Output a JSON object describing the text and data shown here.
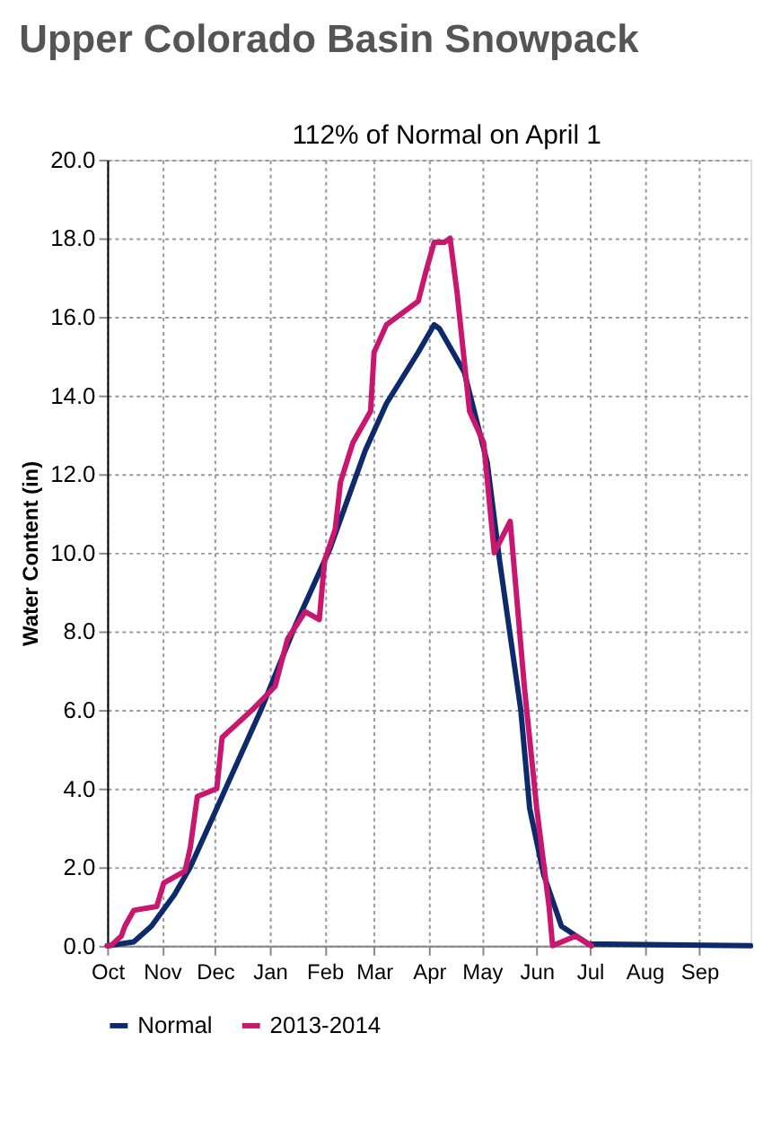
{
  "chart_data": {
    "type": "line",
    "title": "Upper Colorado Basin Snowpack",
    "ylabel": "Water Content (in)",
    "annotations": [
      "112% of Normal on April 1"
    ],
    "xlim": [
      "2013-10-01",
      "2014-09-30"
    ],
    "xticks": [
      {
        "value": "2013-10-01",
        "label": "Oct"
      },
      {
        "value": "2013-11-01",
        "label": "Nov"
      },
      {
        "value": "2013-12-01",
        "label": "Dec"
      },
      {
        "value": "2014-01-01",
        "label": "Jan"
      },
      {
        "value": "2014-02-01",
        "label": "Feb"
      },
      {
        "value": "2014-03-01",
        "label": "Mar"
      },
      {
        "value": "2014-04-01",
        "label": "Apr"
      },
      {
        "value": "2014-05-01",
        "label": "May"
      },
      {
        "value": "2014-06-01",
        "label": "Jun"
      },
      {
        "value": "2014-07-01",
        "label": "Jul"
      },
      {
        "value": "2014-08-01",
        "label": "Aug"
      },
      {
        "value": "2014-09-01",
        "label": "Sep"
      }
    ],
    "ylim": [
      0,
      20
    ],
    "yticks": [
      {
        "value": 0,
        "label": "0.0"
      },
      {
        "value": 2,
        "label": "2.0"
      },
      {
        "value": 4,
        "label": "4.0"
      },
      {
        "value": 6,
        "label": "6.0"
      },
      {
        "value": 8,
        "label": "8.0"
      },
      {
        "value": 10,
        "label": "10.0"
      },
      {
        "value": 12,
        "label": "12.0"
      },
      {
        "value": 14,
        "label": "14.0"
      },
      {
        "value": 16,
        "label": "16.0"
      },
      {
        "value": 18,
        "label": "18.0"
      },
      {
        "value": 20,
        "label": "20.0"
      }
    ],
    "grid": true,
    "legend": "bottom",
    "marker": "none",
    "line_style": "solid",
    "series": [
      {
        "name": "Normal",
        "color": "#0d2a6b",
        "x": [
          "2013-10-01",
          "2013-10-16",
          "2013-10-26",
          "2013-11-08",
          "2013-11-17",
          "2013-12-05",
          "2013-12-27",
          "2014-01-15",
          "2014-02-04",
          "2014-02-24",
          "2014-03-08",
          "2014-03-26",
          "2014-04-04",
          "2014-04-07",
          "2014-04-21",
          "2014-05-04",
          "2014-05-11",
          "2014-05-23",
          "2014-05-28",
          "2014-06-05",
          "2014-06-15",
          "2014-06-30",
          "2014-09-30"
        ],
        "values": [
          0,
          0.1,
          0.5,
          1.3,
          2.0,
          3.8,
          6.0,
          8.1,
          10.1,
          12.6,
          13.8,
          15.1,
          15.8,
          15.7,
          14.6,
          12.3,
          9.8,
          6.0,
          3.5,
          1.8,
          0.5,
          0.05,
          0
        ]
      },
      {
        "name": "2013-2014",
        "color": "#c8176f",
        "x": [
          "2013-10-01",
          "2013-10-03",
          "2013-10-09",
          "2013-10-11",
          "2013-10-16",
          "2013-10-29",
          "2013-11-02",
          "2013-11-14",
          "2013-11-17",
          "2013-11-21",
          "2013-12-02",
          "2013-12-05",
          "2013-12-22",
          "2014-01-04",
          "2014-01-11",
          "2014-01-21",
          "2014-01-29",
          "2014-02-01",
          "2014-02-07",
          "2014-02-10",
          "2014-02-17",
          "2014-02-27",
          "2014-03-01",
          "2014-03-08",
          "2014-03-26",
          "2014-03-30",
          "2014-04-04",
          "2014-04-10",
          "2014-04-13",
          "2014-04-17",
          "2014-04-24",
          "2014-05-02",
          "2014-05-08",
          "2014-05-17",
          "2014-05-25",
          "2014-06-01",
          "2014-06-08",
          "2014-06-10",
          "2014-06-23",
          "2014-07-02"
        ],
        "values": [
          0,
          0,
          0.25,
          0.5,
          0.9,
          1.0,
          1.6,
          1.9,
          2.5,
          3.8,
          4.0,
          5.3,
          6.0,
          6.6,
          7.8,
          8.5,
          8.3,
          9.8,
          10.6,
          11.8,
          12.8,
          13.6,
          15.1,
          15.8,
          16.4,
          17.1,
          17.9,
          17.9,
          18.0,
          16.6,
          13.6,
          12.8,
          10.0,
          10.8,
          6.6,
          3.5,
          1.0,
          0,
          0.25,
          0
        ]
      }
    ]
  }
}
